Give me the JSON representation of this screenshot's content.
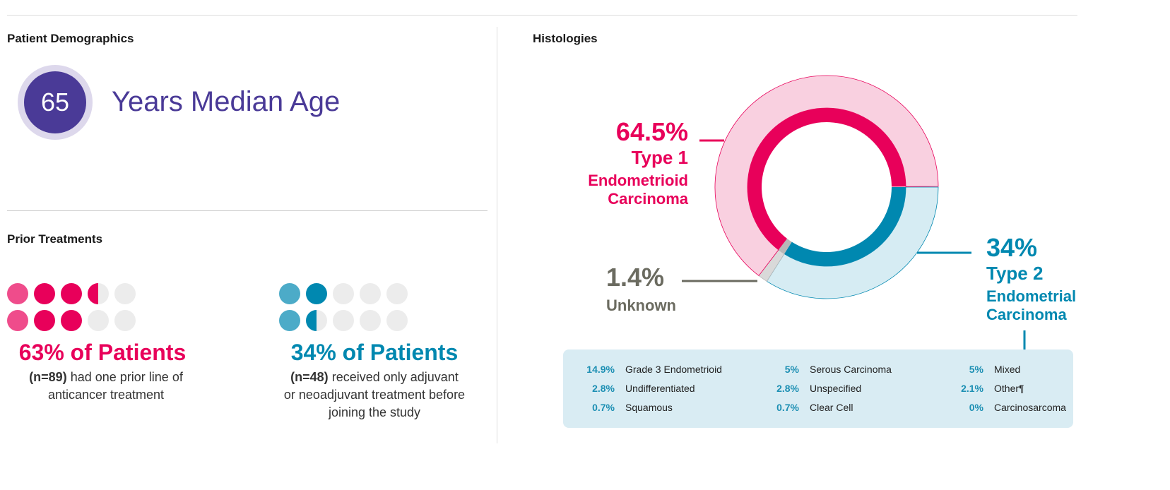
{
  "demographics": {
    "title": "Patient Demographics",
    "median_age": "65",
    "median_age_label": "Years Median Age"
  },
  "prior": {
    "title": "Prior Treatments",
    "left": {
      "fraction": 0.63,
      "headline": "63% of Patients",
      "n": "(n=89)",
      "text": "had one prior line of",
      "text2": "anticancer treatment",
      "color": "#e8005a"
    },
    "right": {
      "fraction": 0.34,
      "headline": "34% of Patients",
      "n": "(n=48)",
      "text": "received only adjuvant",
      "text2": "or neoadjuvant treatment before",
      "text3": "joining the study",
      "color": "#0088b0"
    }
  },
  "chart_data": {
    "type": "pie",
    "title": "Histologies",
    "slices": [
      {
        "value": 64.5,
        "label": "64.5%",
        "name": "Type 1",
        "name2": "Endometrioid",
        "name3": "Carcinoma",
        "color": "#e8005a",
        "outer": "#f9d0e0"
      },
      {
        "value": 34,
        "label": "34%",
        "name": "Type 2",
        "name2": "Endometrial",
        "name3": "Carcinoma",
        "color": "#0088b0",
        "outer": "#d6ecf3"
      },
      {
        "value": 1.4,
        "label": "1.4%",
        "name": "Unknown",
        "color": "#b8b8b8",
        "outer": "#d9d9d9"
      }
    ],
    "breakdown": [
      {
        "pct": "14.9%",
        "label": "Grade 3 Endometrioid"
      },
      {
        "pct": "5%",
        "label": "Serous Carcinoma"
      },
      {
        "pct": "5%",
        "label": "Mixed"
      },
      {
        "pct": "2.8%",
        "label": "Undifferentiated"
      },
      {
        "pct": "2.8%",
        "label": "Unspecified"
      },
      {
        "pct": "2.1%",
        "label": "Other¶"
      },
      {
        "pct": "0.7%",
        "label": "Squamous"
      },
      {
        "pct": "0.7%",
        "label": "Clear Cell"
      },
      {
        "pct": "0%",
        "label": "Carcinosarcoma"
      }
    ]
  }
}
